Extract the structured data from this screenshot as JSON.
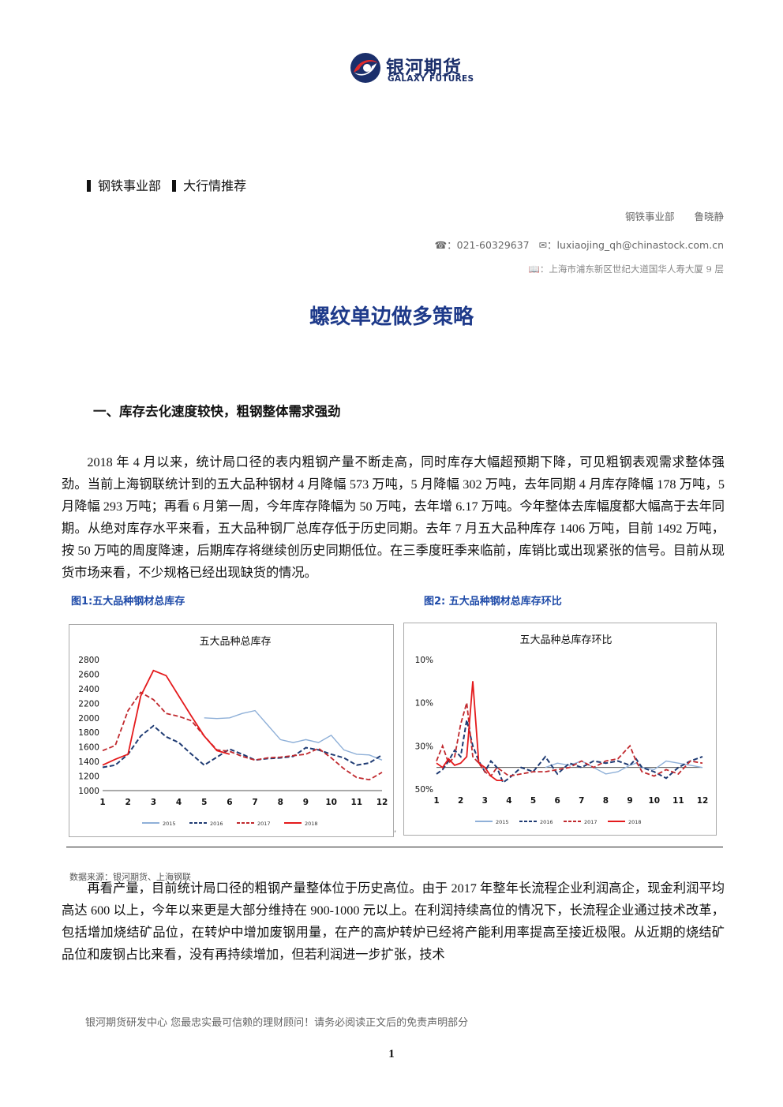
{
  "header": {
    "logo_cn": "银河期货",
    "logo_en": "GALAXY FUTURES"
  },
  "dept_line": {
    "dept": "钢铁事业部",
    "category": "大行情推荐"
  },
  "contact": {
    "author": "钢铁事业部　　鲁晓静",
    "phone_label": "☎：",
    "phone": "021-60329637",
    "email_label": "✉：",
    "email": "luxiaojing_qh@chinastock.com.cn",
    "address_label": "📖：",
    "address": "上海市浦东新区世纪大道国华人寿大厦 9 层"
  },
  "title": "螺纹单边做多策略",
  "section_1_heading": "一、库存去化速度较快，粗钢整体需求强劲",
  "paragraph_1": "2018 年 4 月以来，统计局口径的表内粗钢产量不断走高，同时库存大幅超预期下降，可见粗钢表观需求整体强劲。当前上海钢联统计到的五大品种钢材 4 月降幅 573 万吨，5 月降幅 302 万吨，去年同期 4 月库存降幅 178 万吨，5 月降幅 293 万吨；再看 6 月第一周，今年库存降幅为 50 万吨，去年增 6.17 万吨。今年整体去库幅度都大幅高于去年同期。从绝对库存水平来看，五大品种钢厂总库存低于历史同期。去年 7 月五大品种库存 1406 万吨，目前 1492 万吨，按 50 万吨的周度降速，后期库存将继续创历史同期低位。在三季度旺季来临前，库销比或出现紧张的信号。目前从现货市场来看，不少规格已经出现缺货的情况。",
  "figures": {
    "fig1_caption": "图1:五大品种钢材总库存",
    "fig2_caption": "图2:  五大品种钢材总库存环比",
    "comma": ",",
    "source": "数据来源：银河期货、上海钢联"
  },
  "series_colors": {
    "2015": "#8fb0d8",
    "2016": "#1f3b73",
    "2017": "#c0282d",
    "2018": "#e41a1c"
  },
  "chart_data": [
    {
      "type": "line",
      "title": "五大品种总库存",
      "x": [
        1,
        1.5,
        2,
        2.5,
        3,
        3.5,
        4,
        4.5,
        5,
        5.5,
        6,
        6.5,
        7,
        7.5,
        8,
        8.5,
        9,
        9.5,
        10,
        10.5,
        11,
        11.5,
        12
      ],
      "xticks": [
        "1",
        "2",
        "3",
        "4",
        "5",
        "6",
        "7",
        "8",
        "9",
        "10",
        "11",
        "12"
      ],
      "ylim": [
        1000,
        2800
      ],
      "yticks": [
        "1000",
        "1200",
        "1400",
        "1600",
        "1800",
        "2000",
        "2200",
        "2400",
        "2600",
        "2800"
      ],
      "legend_position": "bottom",
      "series": [
        {
          "name": "2015",
          "style": "solid",
          "values": [
            null,
            null,
            null,
            null,
            null,
            null,
            null,
            null,
            2000,
            1990,
            2000,
            2060,
            2100,
            1900,
            1700,
            1660,
            1700,
            1660,
            1760,
            1560,
            1500,
            1490,
            1420
          ]
        },
        {
          "name": "2016",
          "style": "dashed",
          "values": [
            1320,
            1350,
            1500,
            1750,
            1890,
            1740,
            1660,
            1500,
            1350,
            1460,
            1570,
            1500,
            1420,
            1440,
            1450,
            1470,
            1590,
            1560,
            1500,
            1450,
            1350,
            1380,
            1490
          ]
        },
        {
          "name": "2017",
          "style": "dashed",
          "values": [
            1550,
            1620,
            2100,
            2350,
            2250,
            2060,
            2020,
            1960,
            1750,
            1560,
            1540,
            1470,
            1420,
            1450,
            1460,
            1480,
            1500,
            1580,
            1450,
            1300,
            1180,
            1150,
            1250
          ]
        },
        {
          "name": "2018",
          "style": "solid",
          "values": [
            1350,
            1430,
            1500,
            2300,
            2650,
            2580,
            2300,
            2020,
            1750,
            1550,
            1500,
            null,
            null,
            null,
            null,
            null,
            null,
            null,
            null,
            null,
            null,
            null,
            null
          ]
        }
      ]
    },
    {
      "type": "line",
      "title": "五大品种总库存环比",
      "x": [
        1,
        1.25,
        1.5,
        1.75,
        2,
        2.25,
        2.5,
        2.75,
        3,
        3.25,
        3.5,
        3.75,
        4,
        4.5,
        5,
        5.5,
        6,
        6.5,
        7,
        7.5,
        8,
        8.5,
        9,
        9.25,
        9.5,
        10,
        10.5,
        11,
        11.5,
        12
      ],
      "xticks": [
        "1",
        "2",
        "3",
        "4",
        "5",
        "6",
        "7",
        "8",
        "9",
        "10",
        "11",
        "12"
      ],
      "ylim": [
        -10,
        50
      ],
      "yticks": [
        "50%",
        "30%",
        "10%",
        "10%"
      ],
      "legend_position": "bottom",
      "series": [
        {
          "name": "2015",
          "style": "solid",
          "values": [
            null,
            null,
            null,
            null,
            null,
            null,
            null,
            null,
            null,
            null,
            null,
            null,
            null,
            null,
            null,
            0,
            2,
            1,
            3,
            0,
            -3,
            -2,
            1,
            2,
            0,
            -1,
            3,
            2,
            1,
            0
          ]
        },
        {
          "name": "2016",
          "style": "dashed",
          "values": [
            -3,
            -1,
            3,
            8,
            5,
            22,
            10,
            3,
            -2,
            3,
            0,
            -7,
            -5,
            0,
            -2,
            5,
            -3,
            2,
            0,
            3,
            2,
            3,
            1,
            4,
            0,
            -2,
            -5,
            0,
            3,
            5
          ]
        },
        {
          "name": "2017",
          "style": "dashed",
          "values": [
            3,
            10,
            2,
            5,
            20,
            30,
            5,
            2,
            -2,
            -4,
            0,
            -2,
            -4,
            -3,
            -2,
            -2,
            -1,
            0,
            3,
            0,
            3,
            4,
            10,
            3,
            -2,
            -4,
            -1,
            -3,
            3,
            2
          ]
        },
        {
          "name": "2018",
          "style": "solid",
          "values": [
            2,
            0,
            4,
            1,
            2,
            5,
            40,
            2,
            0,
            -4,
            -6,
            -6,
            null,
            null,
            null,
            null,
            null,
            null,
            null,
            null,
            null,
            null,
            null,
            null,
            null,
            null,
            null,
            null,
            null,
            null
          ]
        }
      ]
    }
  ],
  "paragraph_2": "再看产量，目前统计局口径的粗钢产量整体位于历史高位。由于 2017 年整年长流程企业利润高企，现金利润平均高达 600 以上，今年以来更是大部分维持在 900-1000 元以上。在利润持续高位的情况下，长流程企业通过技术改革，包括增加烧结矿品位，在转炉中增加废钢用量，在产的高炉转炉已经将产能利用率提高至接近极限。从近期的烧结矿品位和废钢占比来看，没有再持续增加，但若利润进一步扩张，技术",
  "footer": {
    "text": "银河期货研发中心  您最忠实最可信赖的理财顾问！请务必阅读正文后的免责声明部分",
    "page_number": "1"
  }
}
